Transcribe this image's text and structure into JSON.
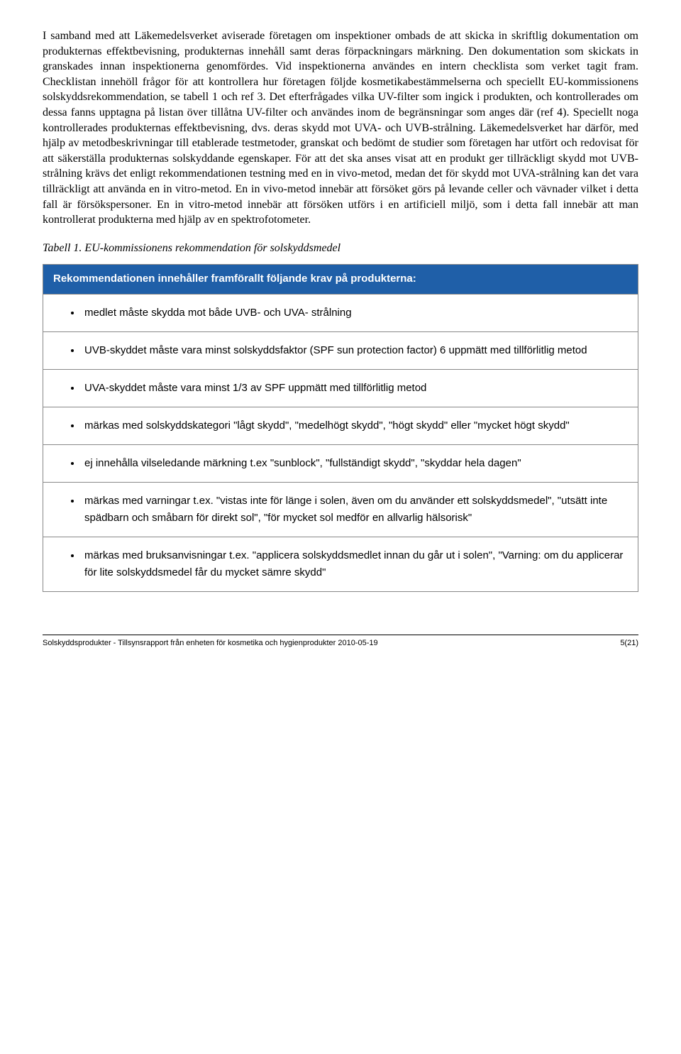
{
  "paragraph": "I samband med att Läkemedelsverket aviserade företagen om inspektioner ombads de att skicka in skriftlig dokumentation om produkternas effektbevisning, produkternas innehåll samt deras förpackningars märkning. Den dokumentation som skickats in granskades innan inspektionerna genomfördes. Vid inspektionerna användes en intern checklista som verket tagit fram. Checklistan innehöll frågor för att kontrollera hur företagen följde kosmetikabestämmelserna och speciellt EU-kommissionens solskyddsrekommendation, se tabell 1 och ref 3. Det efterfrågades vilka UV-filter som ingick i produkten, och kontrollerades om dessa fanns upptagna på listan över tillåtna UV-filter och användes inom de begränsningar som anges där (ref 4). Speciellt noga kontrollerades produkternas effektbevisning, dvs. deras skydd mot UVA- och UVB-strålning. Läkemedelsverket har därför, med hjälp av metodbeskrivningar till etablerade testmetoder, granskat och bedömt de studier som företagen har utfört och redovisat för att säkerställa produkternas solskyddande egenskaper. För att det ska anses visat att en produkt ger tillräckligt skydd mot UVB-strålning krävs det enligt rekommendationen testning med en in vivo-metod, medan det för skydd mot UVA-strålning kan det vara tillräckligt att använda en in vitro-metod. En in vivo-metod innebär att försöket görs på levande celler och vävnader vilket i detta fall är försökspersoner. En in vitro-metod innebär att försöken utförs i en artificiell miljö, som i detta fall innebär att man kontrollerat produkterna med hjälp av en spektrofotometer.",
  "table_caption": "Tabell 1. EU-kommissionens rekommendation för solskyddsmedel",
  "table": {
    "header": "Rekommendationen innehåller framförallt följande krav på produkterna:",
    "header_bg": "#1f5fa8",
    "header_fg": "#ffffff",
    "border_color": "#888888",
    "rows": [
      "medlet måste skydda mot både UVB- och UVA- strålning",
      "UVB-skyddet måste vara minst solskyddsfaktor (SPF sun protection factor) 6 uppmätt med tillförlitlig metod",
      "UVA-skyddet måste vara minst 1/3 av SPF uppmätt med tillförlitlig metod",
      "märkas med solskyddskategori \"lågt skydd\", \"medelhögt skydd\", \"högt skydd\" eller \"mycket högt skydd\"",
      "ej innehålla vilseledande märkning t.ex \"sunblock\", \"fullständigt skydd\", \"skyddar hela dagen\"",
      "märkas med varningar t.ex. \"vistas inte för länge i solen, även om du använder ett solskyddsmedel\", \"utsätt inte spädbarn och småbarn för direkt sol\", \"för mycket sol medför en allvarlig hälsorisk\"",
      "märkas med bruksanvisningar t.ex. \"applicera solskyddsmedlet innan du går ut i solen\", \"Varning: om du applicerar för lite solskyddsmedel får du mycket sämre skydd\""
    ]
  },
  "footer": {
    "left": "Solskyddsprodukter - Tillsynsrapport från enheten för kosmetika och hygienprodukter 2010-05-19",
    "right": "5(21)"
  }
}
